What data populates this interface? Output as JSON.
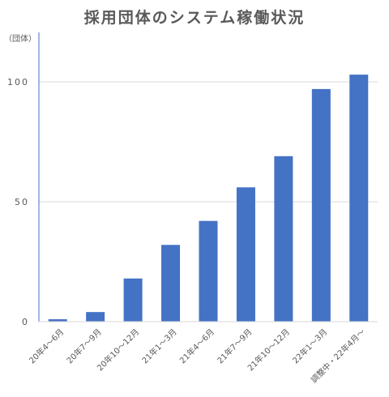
{
  "chart_data": {
    "type": "bar",
    "title": "採用団体のシステム稼働状況",
    "ylabel": "（団体）",
    "xlabel": "",
    "categories": [
      "20年4〜6月",
      "20年7〜9月",
      "20年10〜12月",
      "21年1〜3月",
      "21年4〜6月",
      "21年7〜9月",
      "21年10〜12月",
      "22年1〜3月",
      "調整中・22年4月〜"
    ],
    "values": [
      1,
      4,
      18,
      32,
      42,
      56,
      69,
      97,
      103
    ],
    "ylim": [
      0,
      120
    ],
    "yticks": [
      0,
      50,
      100
    ],
    "grid": true,
    "legend": "none",
    "colors": {
      "bar": "#4472c4",
      "grid": "#d9d9d9",
      "axis": "#4472c4",
      "text": "#595959"
    }
  }
}
